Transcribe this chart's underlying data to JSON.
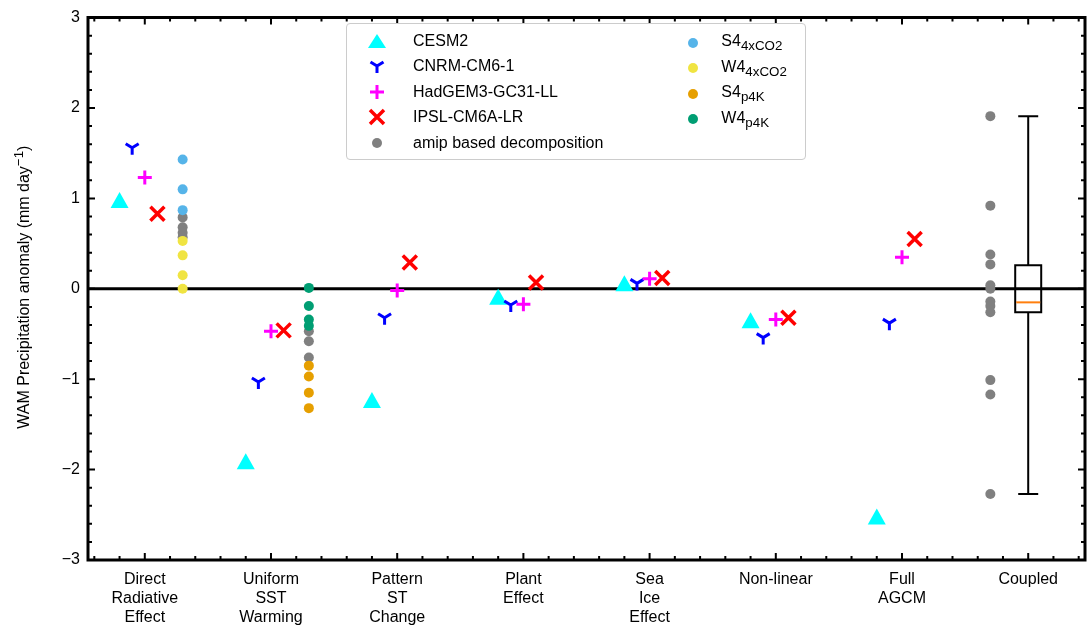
{
  "chart_data": {
    "type": "scatter",
    "ylabel": "WAM Precipitation anomaly (mm day$^{−1}$)",
    "categories": [
      "Direct Radiative Effect",
      "Uniform SST Warming",
      "Pattern ST Change",
      "Plant Effect",
      "Sea Ice Effect",
      "Non-linear",
      "Full AGCM",
      "Coupled"
    ],
    "ylim": [
      -3,
      3
    ],
    "yticks": [
      {
        "value": -3,
        "label": "−3"
      },
      {
        "value": -2,
        "label": "−2"
      },
      {
        "value": -1,
        "label": "−1"
      },
      0,
      1,
      2,
      3
    ],
    "grid": false,
    "legend": "top",
    "ref_lines": [
      {
        "axis": "y",
        "value": 0,
        "color": "#000000"
      }
    ],
    "series": [
      {
        "name": "CESM2",
        "color": "#00ffff",
        "marker": "triangle",
        "values": [
          0.97,
          -1.92,
          -1.24,
          -0.1,
          0.05,
          -0.36,
          -2.53,
          null
        ]
      },
      {
        "name": "CNRM-CM6-1",
        "color": "#0000ff",
        "values": [
          1.56,
          -1.03,
          -0.32,
          -0.18,
          0.06,
          -0.54,
          -0.38,
          null
        ]
      },
      {
        "name": "HadGEM3-GC31-LL",
        "color": "#ff00ff",
        "marker": "plus",
        "values": [
          1.23,
          -0.47,
          -0.02,
          -0.17,
          0.11,
          -0.34,
          0.35,
          null
        ]
      },
      {
        "name": "IPSL-CM6A-LR",
        "color": "#ff0000",
        "marker": "cross",
        "values": [
          0.83,
          -0.46,
          0.29,
          0.07,
          0.12,
          -0.32,
          0.55,
          null
        ]
      },
      {
        "name": "amip based decomposition",
        "color": "#808080",
        "marker": "circle",
        "x": [
          "Direct Radiative Effect",
          "Direct Radiative Effect",
          "Direct Radiative Effect",
          "Direct Radiative Effect",
          "Uniform SST Warming",
          "Uniform SST Warming",
          "Uniform SST Warming",
          "Coupled",
          "Coupled",
          "Coupled",
          "Coupled",
          "Coupled",
          "Coupled",
          "Coupled",
          "Coupled",
          "Coupled",
          "Coupled",
          "Coupled",
          "Coupled"
        ],
        "values": [
          0.79,
          0.68,
          0.62,
          0.57,
          -0.47,
          -0.58,
          -0.76,
          1.91,
          0.92,
          0.38,
          0.27,
          0.04,
          0.0,
          -0.14,
          -0.19,
          -0.26,
          -1.01,
          -1.17,
          -2.27
        ]
      },
      {
        "name": "S4$_{4xCO2}$",
        "color": "#56b4e9",
        "marker": "circle",
        "x": [
          "Direct Radiative Effect",
          "Direct Radiative Effect",
          "Direct Radiative Effect"
        ],
        "values": [
          1.43,
          1.1,
          0.87
        ]
      },
      {
        "name": "W4$_{4xCO2}$",
        "color": "#f0e442",
        "marker": "circle",
        "x": [
          "Direct Radiative Effect",
          "Direct Radiative Effect",
          "Direct Radiative Effect",
          "Direct Radiative Effect"
        ],
        "values": [
          0.53,
          0.37,
          0.15,
          0.0
        ]
      },
      {
        "name": "S4$_{p4K}$",
        "color": "#e69f00",
        "marker": "circle",
        "x": [
          "Uniform SST Warming",
          "Uniform SST Warming",
          "Uniform SST Warming",
          "Uniform SST Warming"
        ],
        "values": [
          -0.85,
          -0.97,
          -1.15,
          -1.32
        ]
      },
      {
        "name": "W4$_{p4K}$",
        "color": "#009e73",
        "marker": "circle",
        "x": [
          "Uniform SST Warming",
          "Uniform SST Warming",
          "Uniform SST Warming",
          "Uniform SST Warming"
        ],
        "values": [
          0.01,
          -0.19,
          -0.34,
          -0.41
        ]
      },
      {
        "type": "box",
        "color": "#000000",
        "boxes": [
          null,
          null,
          null,
          null,
          null,
          null,
          null,
          {
            "low": -2.27,
            "q1": -0.26,
            "median": -0.15,
            "q3": 0.26,
            "high": 1.91
          }
        ]
      }
    ]
  }
}
